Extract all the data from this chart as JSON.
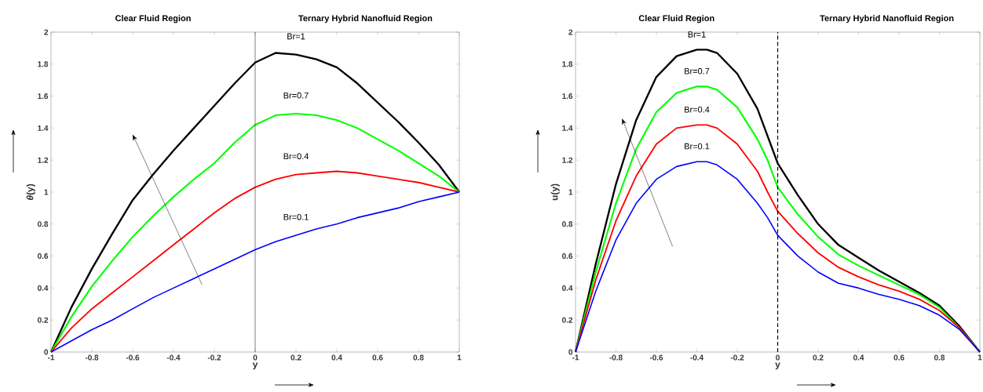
{
  "chart_data": [
    {
      "type": "line",
      "xlabel": "y",
      "ylabel": "*θ*(y)",
      "xlim": [
        -1,
        1
      ],
      "ylim": [
        0,
        2
      ],
      "xticks": [
        -1,
        -0.8,
        -0.6,
        -0.4,
        -0.2,
        0,
        0.2,
        0.4,
        0.6,
        0.8,
        1
      ],
      "yticks": [
        0,
        0.2,
        0.4,
        0.6,
        0.8,
        1,
        1.2,
        1.4,
        1.6,
        1.8,
        2
      ],
      "annotations": [
        "Clear Fluid Region",
        "Ternary Hybrid Nanofluid  Region"
      ],
      "ref_lines": [
        {
          "axis": "x",
          "value": 0,
          "color": "#000000",
          "line_style": "solid"
        }
      ],
      "x": [
        -1,
        -0.9,
        -0.8,
        -0.7,
        -0.6,
        -0.5,
        -0.4,
        -0.3,
        -0.2,
        -0.1,
        0,
        0.1,
        0.2,
        0.3,
        0.4,
        0.5,
        0.6,
        0.7,
        0.8,
        0.9,
        1
      ],
      "series": [
        {
          "name": "Br=1",
          "color": "#000000",
          "values": [
            0,
            0.28,
            0.52,
            0.74,
            0.95,
            1.11,
            1.26,
            1.4,
            1.54,
            1.68,
            1.81,
            1.87,
            1.86,
            1.83,
            1.78,
            1.68,
            1.56,
            1.44,
            1.31,
            1.17,
            1.0
          ]
        },
        {
          "name": "Br=0.7",
          "color": "#00ff00",
          "values": [
            0,
            0.22,
            0.41,
            0.57,
            0.72,
            0.85,
            0.97,
            1.08,
            1.18,
            1.31,
            1.42,
            1.48,
            1.49,
            1.48,
            1.45,
            1.4,
            1.33,
            1.26,
            1.18,
            1.1,
            1.0
          ]
        },
        {
          "name": "Br=0.4",
          "color": "#ff0000",
          "values": [
            0,
            0.15,
            0.27,
            0.37,
            0.47,
            0.57,
            0.67,
            0.77,
            0.87,
            0.96,
            1.03,
            1.08,
            1.11,
            1.12,
            1.13,
            1.12,
            1.1,
            1.08,
            1.06,
            1.03,
            1.0
          ]
        },
        {
          "name": "Br=0.1",
          "color": "#0000ff",
          "values": [
            0,
            0.07,
            0.14,
            0.2,
            0.27,
            0.34,
            0.4,
            0.46,
            0.52,
            0.58,
            0.64,
            0.69,
            0.73,
            0.77,
            0.8,
            0.84,
            0.87,
            0.9,
            0.94,
            0.97,
            1.0
          ]
        }
      ]
    },
    {
      "type": "line",
      "xlabel": "y",
      "ylabel": "u(y)",
      "xlim": [
        -1,
        1
      ],
      "ylim": [
        0,
        2
      ],
      "xticks": [
        -1,
        -0.8,
        -0.6,
        -0.4,
        -0.2,
        0,
        0.2,
        0.4,
        0.6,
        0.8,
        1
      ],
      "yticks": [
        0,
        0.2,
        0.4,
        0.6,
        0.8,
        1,
        1.2,
        1.4,
        1.6,
        1.8,
        2
      ],
      "annotations": [
        "Clear Fluid Region",
        "Ternary Hybrid Nanofluid Region"
      ],
      "ref_lines": [
        {
          "axis": "x",
          "value": 0,
          "color": "#000000",
          "line_style": "dashed"
        }
      ],
      "x": [
        -1,
        -0.9,
        -0.8,
        -0.7,
        -0.6,
        -0.5,
        -0.4,
        -0.35,
        -0.3,
        -0.2,
        -0.1,
        -0.05,
        0,
        0.1,
        0.2,
        0.3,
        0.4,
        0.5,
        0.6,
        0.7,
        0.8,
        0.9,
        1
      ],
      "series": [
        {
          "name": "Br=1",
          "color": "#000000",
          "values": [
            0,
            0.55,
            1.05,
            1.45,
            1.72,
            1.85,
            1.89,
            1.89,
            1.87,
            1.74,
            1.52,
            1.35,
            1.18,
            0.98,
            0.8,
            0.67,
            0.59,
            0.51,
            0.44,
            0.37,
            0.29,
            0.16,
            0
          ]
        },
        {
          "name": "Br=0.7",
          "color": "#00ff00",
          "values": [
            0,
            0.5,
            0.93,
            1.27,
            1.5,
            1.62,
            1.66,
            1.66,
            1.64,
            1.53,
            1.33,
            1.2,
            1.03,
            0.86,
            0.72,
            0.61,
            0.54,
            0.48,
            0.42,
            0.36,
            0.28,
            0.15,
            0
          ]
        },
        {
          "name": "Br=0.4",
          "color": "#ff0000",
          "values": [
            0,
            0.45,
            0.82,
            1.1,
            1.3,
            1.4,
            1.42,
            1.42,
            1.4,
            1.3,
            1.13,
            1.0,
            0.88,
            0.74,
            0.62,
            0.53,
            0.47,
            0.42,
            0.38,
            0.33,
            0.26,
            0.15,
            0
          ]
        },
        {
          "name": "Br=0.1",
          "color": "#0000ff",
          "values": [
            0,
            0.38,
            0.7,
            0.93,
            1.08,
            1.16,
            1.19,
            1.19,
            1.17,
            1.08,
            0.93,
            0.84,
            0.73,
            0.6,
            0.5,
            0.43,
            0.4,
            0.36,
            0.33,
            0.29,
            0.23,
            0.14,
            0
          ]
        }
      ]
    }
  ]
}
